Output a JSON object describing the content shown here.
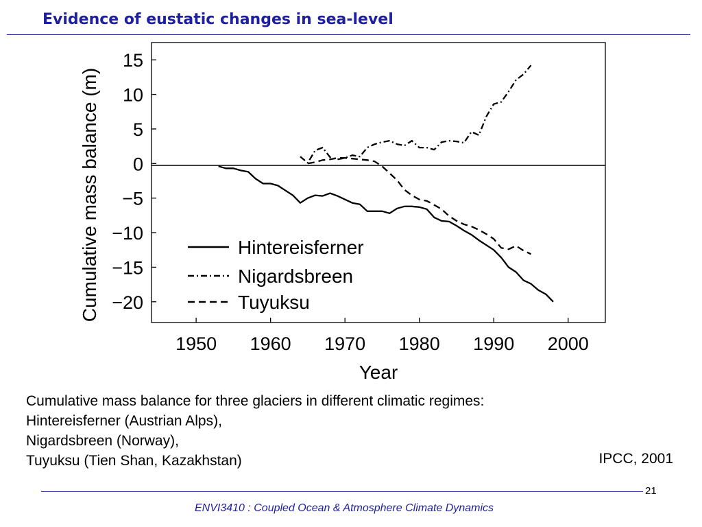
{
  "slide": {
    "title": "Evidence of eustatic changes in sea-level",
    "caption_lines": [
      "Cumulative mass balance for three glaciers in different climatic regimes:",
      "Hintereisferner (Austrian Alps),",
      "Nigardsbreen (Norway),",
      "Tuyuksu (Tien Shan, Kazakhstan)"
    ],
    "source": "IPCC, 2001",
    "page_number": "21",
    "footer": "ENVI3410 : Coupled Ocean & Atmosphere Climate Dynamics"
  },
  "chart_data": {
    "type": "line",
    "title": "",
    "xlabel": "Year",
    "ylabel": "Cumulative mass balance (m)",
    "xlim": [
      1944,
      2005
    ],
    "ylim": [
      -23,
      17.5
    ],
    "x_ticks": [
      1950,
      1960,
      1970,
      1980,
      1990,
      2000
    ],
    "x_tick_labels": [
      "1950",
      "1960",
      "1970",
      "1980",
      "1990",
      "2000"
    ],
    "y_ticks": [
      15,
      10,
      5,
      0,
      -5,
      -10,
      -15,
      -20
    ],
    "y_tick_labels": [
      "15",
      "10",
      "5",
      "0",
      "−5",
      "−10",
      "−15",
      "−20"
    ],
    "zero_line": true,
    "grid": false,
    "legend_position": "bottom-left",
    "colors": {
      "line": "#000000"
    },
    "series": [
      {
        "name": "Hintereisferner",
        "style": "solid",
        "x": [
          1953,
          1954,
          1955,
          1956,
          1957,
          1958,
          1959,
          1960,
          1961,
          1962,
          1963,
          1964,
          1965,
          1966,
          1967,
          1968,
          1969,
          1970,
          1971,
          1972,
          1973,
          1974,
          1975,
          1976,
          1977,
          1978,
          1979,
          1980,
          1981,
          1982,
          1983,
          1984,
          1985,
          1986,
          1987,
          1988,
          1989,
          1990,
          1991,
          1992,
          1993,
          1994,
          1995,
          1996,
          1997,
          1998
        ],
        "values": [
          -0.4,
          -0.7,
          -0.7,
          -1.0,
          -1.2,
          -2.2,
          -2.9,
          -2.9,
          -3.2,
          -3.9,
          -4.6,
          -5.7,
          -5.0,
          -4.6,
          -4.7,
          -4.3,
          -4.7,
          -5.2,
          -5.7,
          -5.9,
          -6.9,
          -6.9,
          -6.9,
          -7.2,
          -6.5,
          -6.2,
          -6.2,
          -6.3,
          -6.6,
          -7.8,
          -8.3,
          -8.4,
          -9.0,
          -9.7,
          -10.3,
          -11.1,
          -11.8,
          -12.5,
          -13.6,
          -15.0,
          -15.7,
          -16.9,
          -17.4,
          -18.3,
          -18.9,
          -20.0
        ]
      },
      {
        "name": "Nigardsbreen",
        "style": "dash-dot",
        "x": [
          1964,
          1965,
          1966,
          1967,
          1968,
          1969,
          1970,
          1971,
          1972,
          1973,
          1974,
          1975,
          1976,
          1977,
          1978,
          1979,
          1980,
          1981,
          1982,
          1983,
          1984,
          1985,
          1986,
          1987,
          1988,
          1989,
          1990,
          1991,
          1992,
          1993,
          1994,
          1995
        ],
        "values": [
          1.0,
          0.1,
          1.9,
          2.3,
          0.9,
          0.6,
          0.8,
          1.2,
          1.0,
          2.3,
          2.8,
          3.1,
          3.3,
          2.8,
          2.6,
          3.3,
          2.3,
          2.3,
          2.0,
          3.1,
          3.3,
          3.2,
          3.0,
          4.6,
          4.1,
          6.8,
          8.6,
          8.9,
          10.4,
          12.1,
          12.9,
          14.2
        ]
      },
      {
        "name": "Tuyuksu",
        "style": "dashed",
        "x": [
          1965,
          1966,
          1967,
          1968,
          1969,
          1970,
          1971,
          1972,
          1973,
          1974,
          1975,
          1976,
          1977,
          1978,
          1979,
          1980,
          1981,
          1982,
          1983,
          1984,
          1985,
          1986,
          1987,
          1988,
          1989,
          1990,
          1991,
          1992,
          1993,
          1994,
          1995
        ],
        "values": [
          0.0,
          0.2,
          0.5,
          0.6,
          0.8,
          0.8,
          0.7,
          0.6,
          0.5,
          0.3,
          -0.4,
          -1.4,
          -2.4,
          -3.8,
          -4.6,
          -5.2,
          -5.4,
          -6.0,
          -6.6,
          -7.6,
          -8.3,
          -8.8,
          -9.1,
          -9.6,
          -10.2,
          -10.9,
          -12.2,
          -12.4,
          -11.9,
          -12.6,
          -13.1
        ]
      }
    ]
  }
}
